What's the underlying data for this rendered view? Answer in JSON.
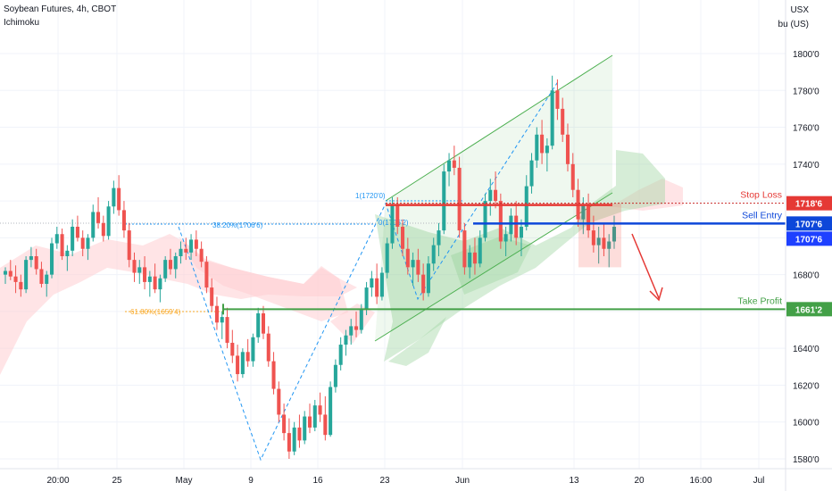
{
  "header": {
    "title": "Soybean Futures, 4h, CBOT",
    "indicator": "Ichimoku"
  },
  "axis": {
    "currency": "USX",
    "unit": "bu (US)"
  },
  "colors": {
    "up": "#26a69a",
    "down": "#ef5350",
    "channel": "#4caf50",
    "cloud_green": "#a5d6a7",
    "cloud_red": "#ffcdd2",
    "stop_loss": "#f44336",
    "sell_entry": "#0d47d9",
    "take_profit": "#43a047",
    "fib": "#2196f3"
  },
  "chart_data": {
    "type": "candlestick",
    "y_ticks": [
      "1800'0",
      "1780'0",
      "1760'0",
      "1740'0",
      "1720'0",
      "1700'0",
      "1680'0",
      "1660'0",
      "1640'0",
      "1620'0",
      "1600'0",
      "1580'0"
    ],
    "x_ticks": [
      "20:00",
      "25",
      "May",
      "9",
      "16",
      "23",
      "Jun",
      "13",
      "20",
      "16:00",
      "Jul"
    ],
    "levels": [
      {
        "name": "Stop Loss",
        "price_label": "1718'6",
        "value": 1718.75
      },
      {
        "name": "Sell Entry",
        "price_label": "1707'6",
        "value": 1707.75
      },
      {
        "name": "Take Profit",
        "price_label": "1661'2",
        "value": 1661.25
      }
    ],
    "current_price_label": "1707'6",
    "fib_labels": [
      {
        "text": "1(1720'0)"
      },
      {
        "text": "38.20%(1706'6)"
      },
      {
        "text": "0(1706'2)"
      },
      {
        "text": "61.80%(1659'4)"
      }
    ],
    "candles_ohlc": [
      [
        1680,
        1684,
        1675,
        1682
      ],
      [
        1682,
        1688,
        1677,
        1679
      ],
      [
        1679,
        1685,
        1670,
        1676
      ],
      [
        1676,
        1680,
        1668,
        1672
      ],
      [
        1672,
        1690,
        1670,
        1688
      ],
      [
        1688,
        1695,
        1684,
        1690
      ],
      [
        1690,
        1694,
        1680,
        1683
      ],
      [
        1683,
        1687,
        1673,
        1675
      ],
      [
        1675,
        1682,
        1668,
        1680
      ],
      [
        1680,
        1700,
        1678,
        1697
      ],
      [
        1697,
        1706,
        1694,
        1702
      ],
      [
        1702,
        1705,
        1688,
        1690
      ],
      [
        1690,
        1696,
        1682,
        1693
      ],
      [
        1693,
        1710,
        1690,
        1706
      ],
      [
        1706,
        1712,
        1698,
        1700
      ],
      [
        1700,
        1704,
        1690,
        1694
      ],
      [
        1694,
        1702,
        1688,
        1700
      ],
      [
        1700,
        1718,
        1698,
        1714
      ],
      [
        1714,
        1722,
        1705,
        1708
      ],
      [
        1708,
        1712,
        1698,
        1701
      ],
      [
        1701,
        1720,
        1699,
        1717
      ],
      [
        1717,
        1731,
        1713,
        1727
      ],
      [
        1727,
        1734,
        1712,
        1715
      ],
      [
        1715,
        1720,
        1700,
        1704
      ],
      [
        1704,
        1708,
        1684,
        1688
      ],
      [
        1688,
        1692,
        1676,
        1681
      ],
      [
        1681,
        1688,
        1675,
        1684
      ],
      [
        1684,
        1690,
        1672,
        1676
      ],
      [
        1676,
        1682,
        1668,
        1679
      ],
      [
        1679,
        1686,
        1670,
        1672
      ],
      [
        1672,
        1680,
        1665,
        1678
      ],
      [
        1678,
        1690,
        1676,
        1688
      ],
      [
        1688,
        1694,
        1680,
        1683
      ],
      [
        1683,
        1692,
        1678,
        1690
      ],
      [
        1690,
        1698,
        1686,
        1694
      ],
      [
        1694,
        1700,
        1688,
        1692
      ],
      [
        1692,
        1702,
        1688,
        1699
      ],
      [
        1699,
        1704,
        1690,
        1694
      ],
      [
        1694,
        1698,
        1684,
        1687
      ],
      [
        1687,
        1690,
        1670,
        1673
      ],
      [
        1673,
        1678,
        1660,
        1663
      ],
      [
        1663,
        1668,
        1650,
        1654
      ],
      [
        1654,
        1660,
        1645,
        1657
      ],
      [
        1657,
        1662,
        1640,
        1643
      ],
      [
        1643,
        1650,
        1632,
        1636
      ],
      [
        1636,
        1642,
        1622,
        1626
      ],
      [
        1626,
        1640,
        1624,
        1638
      ],
      [
        1638,
        1645,
        1630,
        1633
      ],
      [
        1633,
        1648,
        1630,
        1646
      ],
      [
        1646,
        1662,
        1643,
        1659
      ],
      [
        1659,
        1663,
        1645,
        1648
      ],
      [
        1648,
        1652,
        1630,
        1633
      ],
      [
        1633,
        1638,
        1615,
        1618
      ],
      [
        1618,
        1622,
        1600,
        1604
      ],
      [
        1604,
        1610,
        1590,
        1594
      ],
      [
        1594,
        1602,
        1580,
        1584
      ],
      [
        1584,
        1600,
        1582,
        1597
      ],
      [
        1597,
        1604,
        1586,
        1590
      ],
      [
        1590,
        1606,
        1588,
        1603
      ],
      [
        1603,
        1610,
        1594,
        1597
      ],
      [
        1597,
        1612,
        1595,
        1609
      ],
      [
        1609,
        1616,
        1600,
        1604
      ],
      [
        1604,
        1614,
        1590,
        1593
      ],
      [
        1593,
        1622,
        1592,
        1619
      ],
      [
        1619,
        1634,
        1616,
        1631
      ],
      [
        1631,
        1646,
        1628,
        1642
      ],
      [
        1642,
        1650,
        1636,
        1647
      ],
      [
        1647,
        1656,
        1642,
        1652
      ],
      [
        1652,
        1660,
        1646,
        1650
      ],
      [
        1650,
        1664,
        1648,
        1661
      ],
      [
        1661,
        1676,
        1658,
        1673
      ],
      [
        1673,
        1682,
        1668,
        1678
      ],
      [
        1678,
        1686,
        1664,
        1668
      ],
      [
        1668,
        1684,
        1666,
        1681
      ],
      [
        1681,
        1700,
        1678,
        1697
      ],
      [
        1697,
        1722,
        1694,
        1718
      ],
      [
        1718,
        1722,
        1702,
        1706
      ],
      [
        1706,
        1710,
        1690,
        1694
      ],
      [
        1694,
        1700,
        1680,
        1684
      ],
      [
        1684,
        1692,
        1674,
        1688
      ],
      [
        1688,
        1694,
        1676,
        1680
      ],
      [
        1680,
        1686,
        1666,
        1670
      ],
      [
        1670,
        1690,
        1668,
        1686
      ],
      [
        1686,
        1700,
        1682,
        1696
      ],
      [
        1696,
        1708,
        1690,
        1704
      ],
      [
        1704,
        1740,
        1702,
        1736
      ],
      [
        1736,
        1746,
        1728,
        1742
      ],
      [
        1742,
        1750,
        1734,
        1738
      ],
      [
        1738,
        1744,
        1700,
        1704
      ],
      [
        1704,
        1708,
        1680,
        1684
      ],
      [
        1684,
        1696,
        1678,
        1692
      ],
      [
        1692,
        1700,
        1680,
        1686
      ],
      [
        1686,
        1704,
        1684,
        1700
      ],
      [
        1700,
        1724,
        1698,
        1720
      ],
      [
        1720,
        1732,
        1712,
        1726
      ],
      [
        1726,
        1736,
        1716,
        1720
      ],
      [
        1720,
        1724,
        1694,
        1698
      ],
      [
        1698,
        1706,
        1690,
        1702
      ],
      [
        1702,
        1716,
        1698,
        1712
      ],
      [
        1712,
        1720,
        1696,
        1700
      ],
      [
        1700,
        1710,
        1690,
        1706
      ],
      [
        1706,
        1734,
        1704,
        1728
      ],
      [
        1728,
        1746,
        1724,
        1742
      ],
      [
        1742,
        1760,
        1738,
        1756
      ],
      [
        1756,
        1764,
        1740,
        1746
      ],
      [
        1746,
        1754,
        1736,
        1750
      ],
      [
        1750,
        1788,
        1748,
        1780
      ],
      [
        1780,
        1786,
        1764,
        1770
      ],
      [
        1770,
        1776,
        1752,
        1756
      ],
      [
        1756,
        1762,
        1736,
        1740
      ],
      [
        1740,
        1746,
        1722,
        1726
      ],
      [
        1726,
        1732,
        1706,
        1710
      ],
      [
        1710,
        1722,
        1702,
        1718
      ],
      [
        1718,
        1724,
        1700,
        1704
      ],
      [
        1704,
        1712,
        1692,
        1696
      ],
      [
        1696,
        1706,
        1686,
        1700
      ],
      [
        1700,
        1708,
        1690,
        1694
      ],
      [
        1694,
        1702,
        1684,
        1698
      ],
      [
        1698,
        1712,
        1694,
        1706
      ]
    ]
  }
}
